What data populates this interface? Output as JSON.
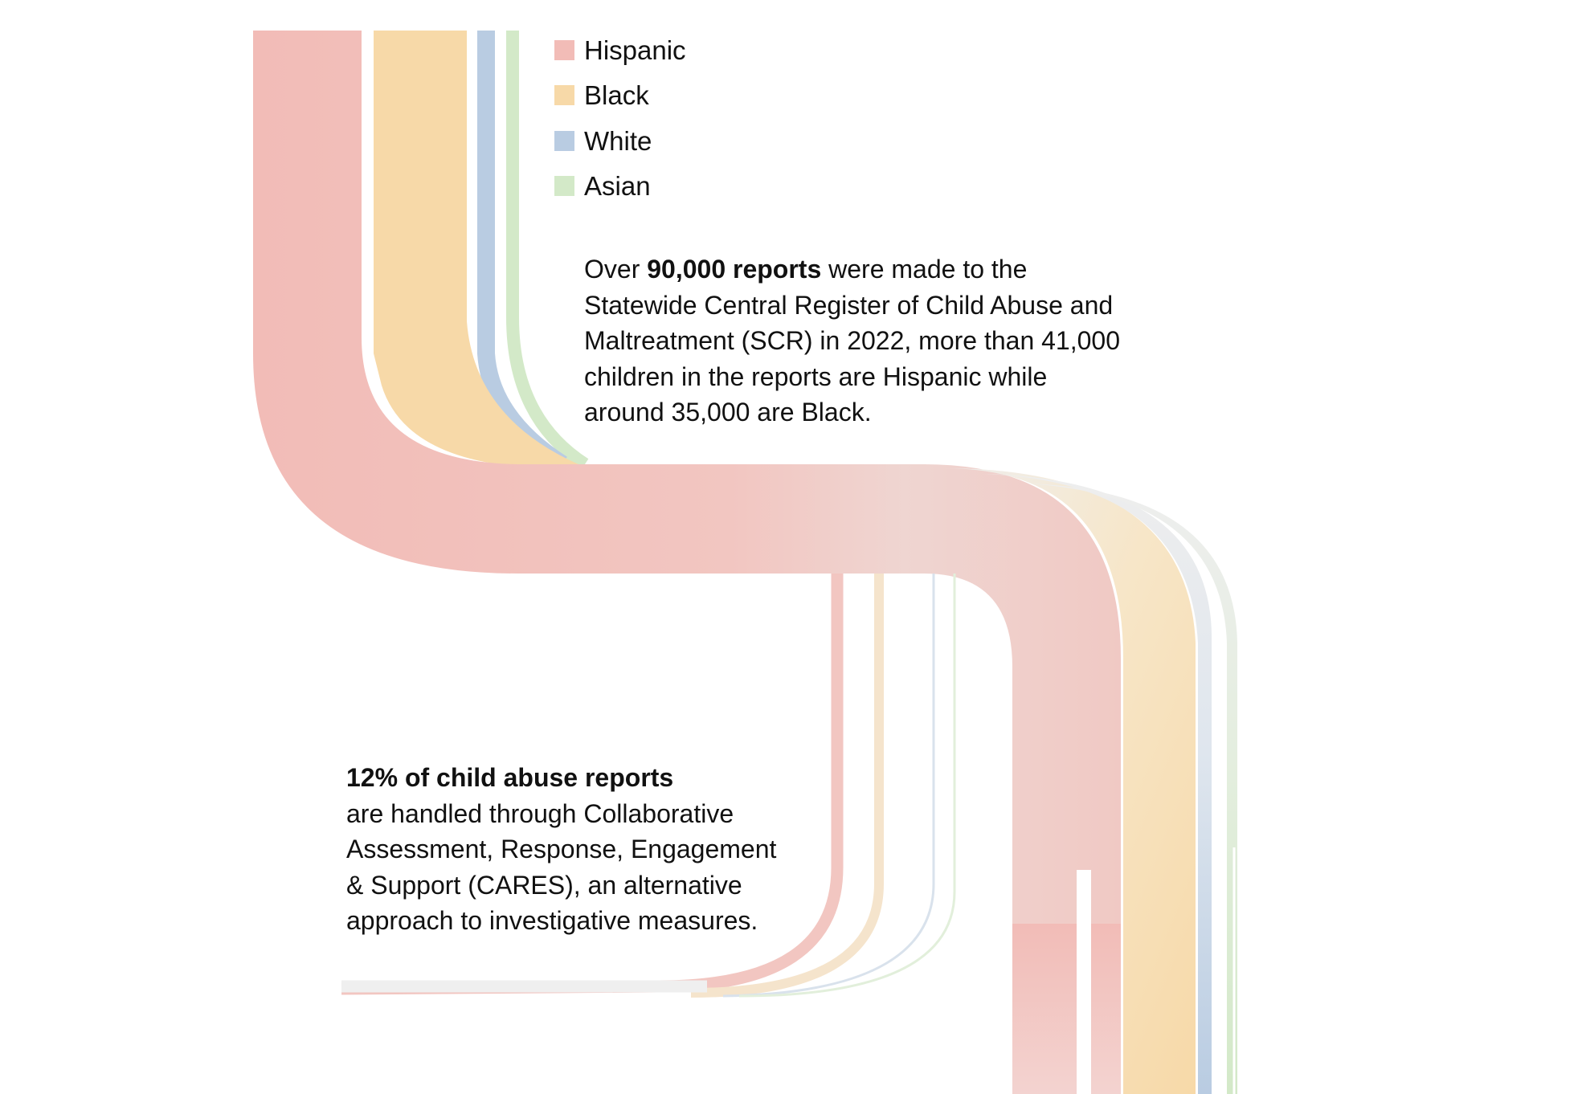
{
  "legend": [
    {
      "label": "Hispanic",
      "color": "#f2bcb7"
    },
    {
      "label": "Black",
      "color": "#f7d9a8"
    },
    {
      "label": "White",
      "color": "#b9cce2"
    },
    {
      "label": "Asian",
      "color": "#d3e9c8"
    }
  ],
  "annotations": {
    "top": {
      "prefix": "Over ",
      "bold": "90,000 reports",
      "line1_rest": " were made to the",
      "line2": "Statewide Central Register of Child Abuse and",
      "line3": "Maltreatment (SCR) in 2022, more than 41,000",
      "line4": "children in the reports are Hispanic while",
      "line5": "around 35,000 are Black."
    },
    "bottom": {
      "bold": "12% of child abuse reports",
      "line2": "are handled through Collaborative",
      "line3": "Assessment, Response, Engagement",
      "line4": "& Support (CARES), an alternative",
      "line5": "approach to investigative measures."
    }
  },
  "colors": {
    "hispanic": "#f2bcb7",
    "black": "#f7d9a8",
    "white": "#b9cce2",
    "asian": "#d3e9c8",
    "faded": "#eeeeee"
  }
}
